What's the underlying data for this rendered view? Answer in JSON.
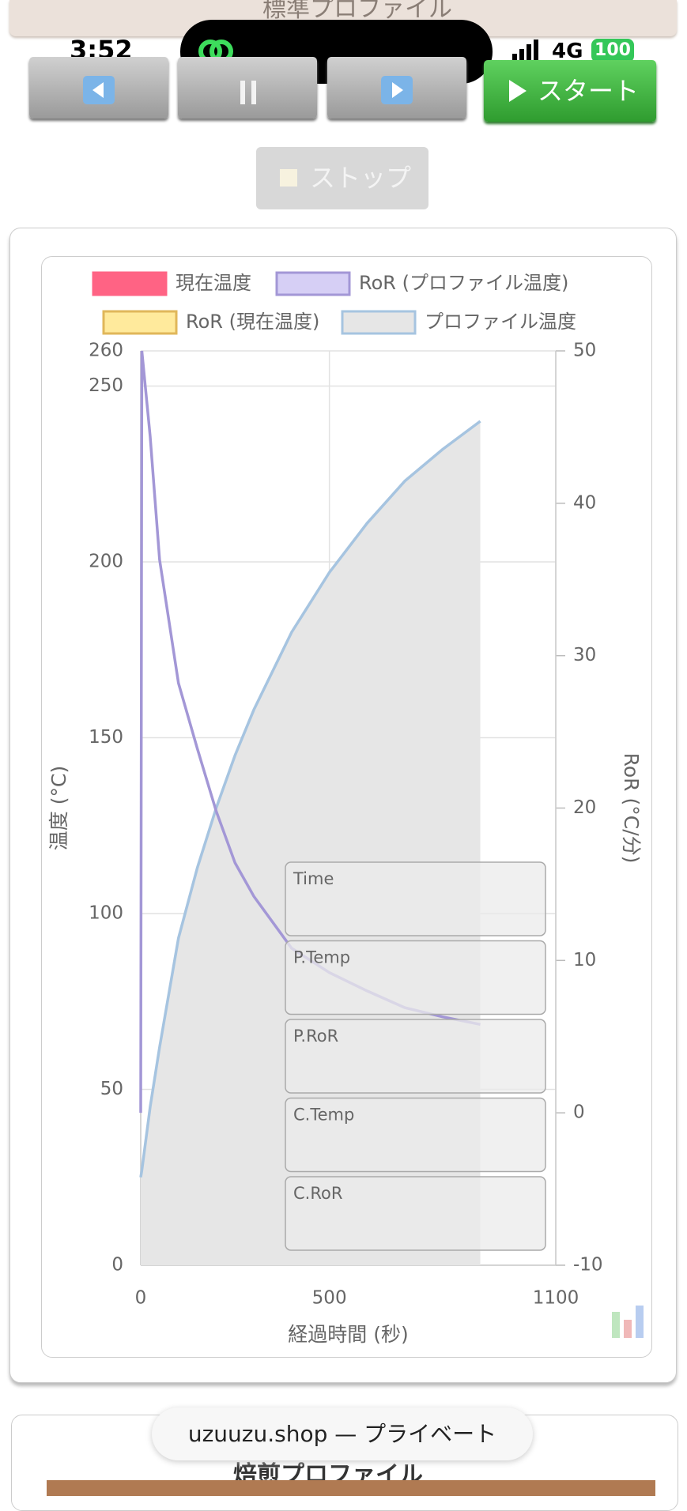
{
  "header": {
    "title": "標準プロファイル"
  },
  "status_bar": {
    "time": "3:52",
    "network": "4G",
    "battery": "100"
  },
  "controls": {
    "start": "スタート",
    "stop": "ストップ"
  },
  "info_panel": [
    "Time",
    "P.Temp",
    "P.RoR",
    "C.Temp",
    "C.RoR"
  ],
  "footer": {
    "address": "uzuuzu.shop — プライベート",
    "section_title": "焙煎プロファイル"
  },
  "chart_data": {
    "type": "line",
    "x_label": "経過時間 (秒)",
    "y_label": "温度 (°C)",
    "y2_label": "RoR (°C/分)",
    "x": [
      0,
      3,
      25,
      50,
      100,
      150,
      200,
      250,
      300,
      400,
      500,
      600,
      700,
      800,
      900
    ],
    "series": [
      {
        "name": "現在温度",
        "color": "#ff6384",
        "fill": "#ff6384",
        "values": [
          null,
          null,
          null,
          null,
          null,
          null,
          null,
          null,
          null,
          null,
          null,
          null,
          null,
          null,
          null
        ]
      },
      {
        "name": "RoR (プロファイル温度)",
        "color": "#a397d6",
        "fill": "#d6cff5",
        "axis": "y2",
        "values": [
          0,
          50,
          44.4,
          36.3,
          28.2,
          23.9,
          19.8,
          16.4,
          14.2,
          10.8,
          9.2,
          8.0,
          6.9,
          6.3,
          5.8
        ]
      },
      {
        "name": "RoR (現在温度)",
        "color": "#e0b75a",
        "fill": "#ffea9c",
        "axis": "y2",
        "values": [
          null,
          null,
          null,
          null,
          null,
          null,
          null,
          null,
          null,
          null,
          null,
          null,
          null,
          null,
          null
        ]
      },
      {
        "name": "プロファイル温度",
        "color": "#a6c4e0",
        "fill": "#e6e6e6",
        "area": true,
        "values": [
          25,
          27,
          45,
          62,
          93,
          113,
          130,
          145,
          158,
          180,
          197,
          211,
          223,
          232,
          240
        ]
      }
    ],
    "xlim": [
      0,
      1100
    ],
    "xticks": [
      0,
      500,
      1100
    ],
    "ylim": [
      0,
      260
    ],
    "yticks": [
      0,
      50,
      100,
      150,
      200,
      250,
      260
    ],
    "y2lim": [
      -10,
      50
    ],
    "y2ticks": [
      -10,
      0,
      10,
      20,
      30,
      40,
      50
    ],
    "grid": true
  }
}
